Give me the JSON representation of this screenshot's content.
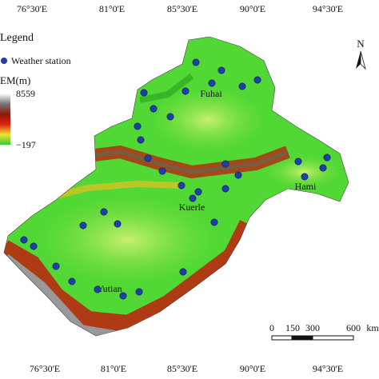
{
  "axes": {
    "top_labels": [
      "76°30'E",
      "81°0'E",
      "85°30'E",
      "90°0'E",
      "94°30'E"
    ],
    "bottom_labels": [
      "76°30'E",
      "81°0'E",
      "85°30'E",
      "90°0'E",
      "94°30'E"
    ]
  },
  "legend": {
    "title": "Legend",
    "station": "Weather station",
    "dem_title": "EM(m)",
    "dem_max": "8559",
    "dem_min": "−197"
  },
  "places": [
    "Fuhai",
    "Hami",
    "Kuerle",
    "Yutian"
  ],
  "compass": "N",
  "scale": {
    "labels": [
      "0",
      "150",
      "300",
      "600"
    ],
    "unit": "km"
  }
}
